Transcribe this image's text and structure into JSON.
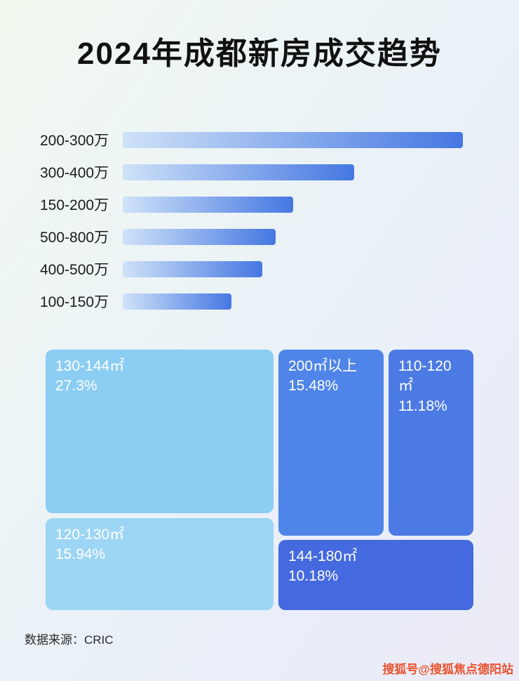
{
  "title": "2024年成都新房成交趋势",
  "footer": {
    "source": "数据来源：CRIC"
  },
  "watermark": "搜狐号@搜狐焦点德阳站",
  "colors": {
    "bar_gradient_start": "#cfe2f8",
    "bar_gradient_end": "#4577e2",
    "block_130_144": "#8ccdf3",
    "block_120_130": "#9dd5f4",
    "block_200_plus": "#4f85e8",
    "block_110_120": "#4b7ae4",
    "block_144_180": "#4569de"
  },
  "chart_data": [
    {
      "type": "bar",
      "orientation": "horizontal",
      "title": "2024年成都新房成交趋势",
      "categories": [
        "200-300万",
        "300-400万",
        "150-200万",
        "500-800万",
        "400-500万",
        "100-150万"
      ],
      "values": [
        100,
        68,
        50,
        45,
        41,
        32
      ],
      "values_unit": "percent_of_longest_bar (no numeric labels shown in image)",
      "grid": false,
      "legend": false
    },
    {
      "type": "treemap",
      "items": [
        {
          "label": "130-144㎡",
          "value": 27.3,
          "display": "27.3%"
        },
        {
          "label": "120-130㎡",
          "value": 15.94,
          "display": "15.94%"
        },
        {
          "label": "200㎡以上",
          "value": 15.48,
          "display": "15.48%"
        },
        {
          "label": "110-120㎡",
          "value": 11.18,
          "display": "11.18%"
        },
        {
          "label": "144-180㎡",
          "value": 10.18,
          "display": "10.18%"
        }
      ],
      "legend": false
    }
  ]
}
